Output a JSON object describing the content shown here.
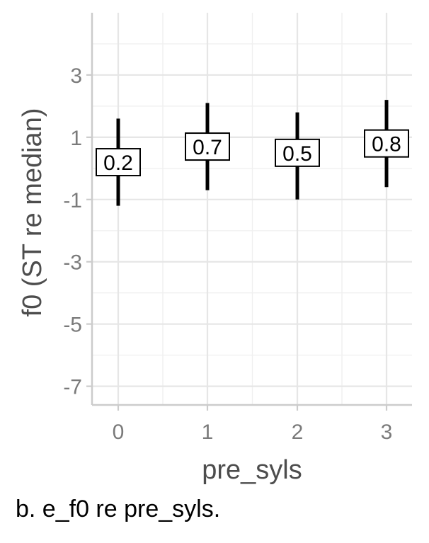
{
  "chart_data": {
    "type": "errorbar",
    "title": "",
    "xlabel": "pre_syls",
    "ylabel": "f0 (ST re median)",
    "categories": [
      "0",
      "1",
      "2",
      "3"
    ],
    "points": [
      {
        "x": "0",
        "label": "0.2",
        "value": 0.2,
        "low": -1.2,
        "high": 1.6
      },
      {
        "x": "1",
        "label": "0.7",
        "value": 0.7,
        "low": -0.7,
        "high": 2.1
      },
      {
        "x": "2",
        "label": "0.5",
        "value": 0.5,
        "low": -1.0,
        "high": 1.8
      },
      {
        "x": "3",
        "label": "0.8",
        "value": 0.8,
        "low": -0.6,
        "high": 2.2
      }
    ],
    "y_ticks": [
      3,
      1,
      -1,
      -3,
      -5,
      -7
    ],
    "y_tick_labels": [
      "3",
      "1",
      "-1",
      "-3",
      "-5",
      "-7"
    ],
    "ylim": [
      -7.6,
      5.0
    ],
    "grid": true,
    "legend": "none"
  },
  "caption": "b.  e_f0 re pre_syls."
}
